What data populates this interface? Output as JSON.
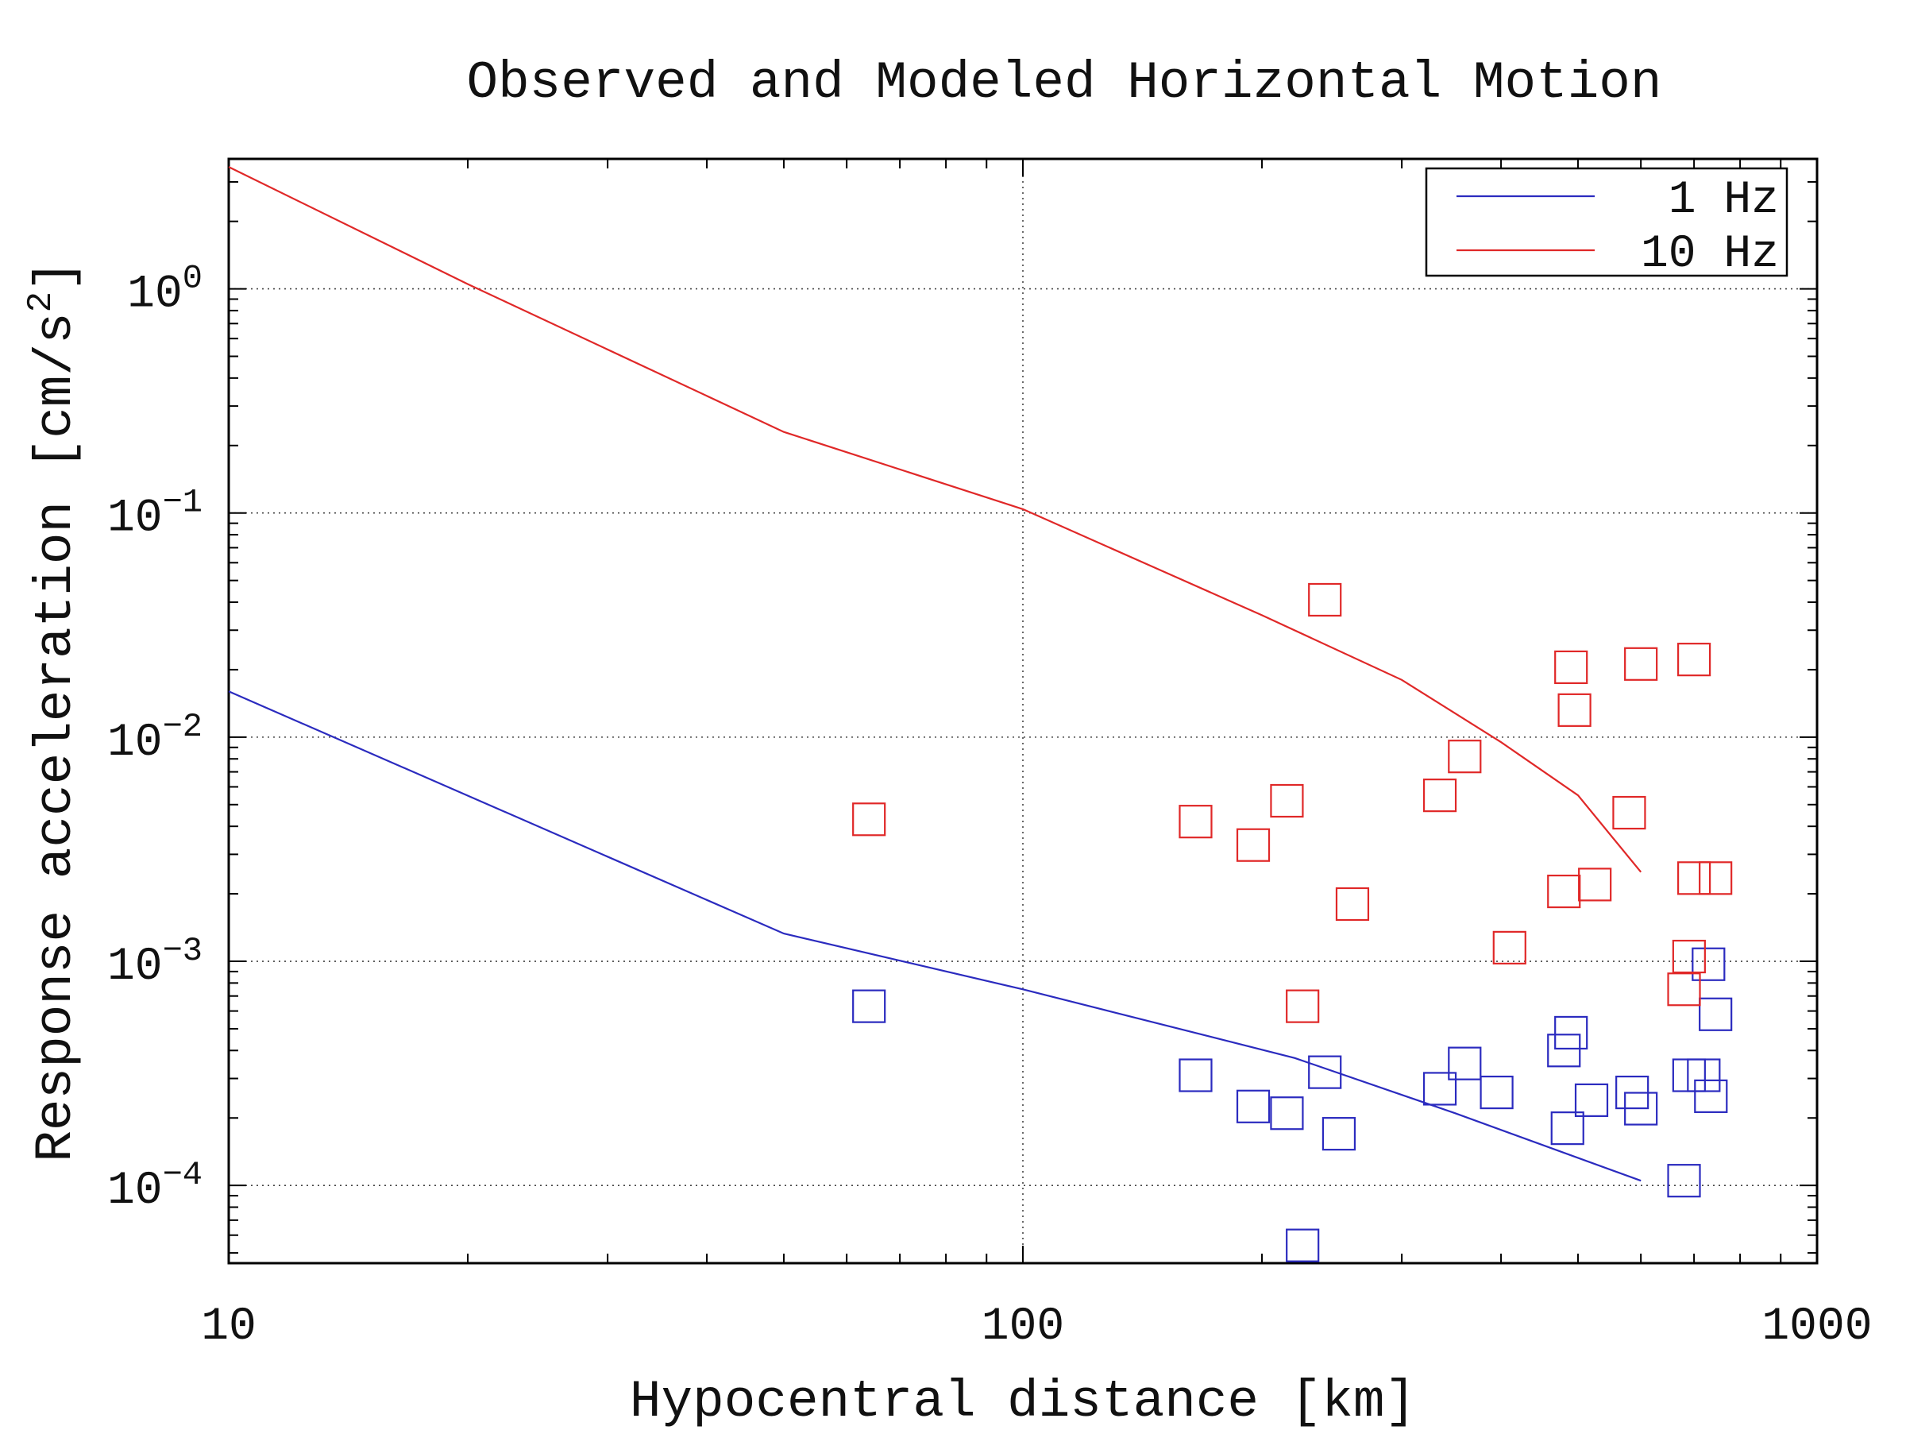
{
  "chart_data": {
    "type": "scatter",
    "title": "Observed and Modeled Horizontal Motion",
    "xlabel": "Hypocentral distance [km]",
    "ylabel": {
      "text": "Response acceleration [cm/s",
      "sup": "2",
      "close": "]"
    },
    "xscale": "log",
    "yscale": "log",
    "xlim": [
      10,
      1000
    ],
    "ylim": [
      4.5e-05,
      3.8
    ],
    "grid": true,
    "legend_position": "top-right",
    "x_ticks": [
      {
        "value": 10,
        "label": "10"
      },
      {
        "value": 100,
        "label": "100"
      },
      {
        "value": 1000,
        "label": "1000"
      }
    ],
    "y_ticks": [
      {
        "value": 1,
        "base": "10",
        "exp": "0"
      },
      {
        "value": 0.1,
        "base": "10",
        "exp": "−1"
      },
      {
        "value": 0.01,
        "base": "10",
        "exp": "−2"
      },
      {
        "value": 0.001,
        "base": "10",
        "exp": "−3"
      },
      {
        "value": 0.0001,
        "base": "10",
        "exp": "−4"
      }
    ],
    "series": [
      {
        "name": "1 Hz",
        "color": "#2b2bbf",
        "line": [
          [
            10,
            0.016
          ],
          [
            50,
            0.00133
          ],
          [
            100,
            0.00075
          ],
          [
            220,
            0.00037
          ],
          [
            350,
            0.00021
          ],
          [
            600,
            0.000105
          ]
        ],
        "points": [
          [
            64,
            0.00063
          ],
          [
            165,
            0.00031
          ],
          [
            195,
            0.000225
          ],
          [
            215,
            0.00021
          ],
          [
            225,
            5.4e-05
          ],
          [
            240,
            0.00032
          ],
          [
            250,
            0.00017
          ],
          [
            335,
            0.00027
          ],
          [
            360,
            0.00035
          ],
          [
            395,
            0.00026
          ],
          [
            480,
            0.0004
          ],
          [
            490,
            0.00048
          ],
          [
            485,
            0.00018
          ],
          [
            520,
            0.00024
          ],
          [
            585,
            0.00026
          ],
          [
            600,
            0.00022
          ],
          [
            690,
            0.00031
          ],
          [
            720,
            0.00031
          ],
          [
            735,
            0.00025
          ],
          [
            745,
            0.00058
          ],
          [
            730,
            0.00097
          ],
          [
            680,
            0.000105
          ]
        ]
      },
      {
        "name": "10 Hz",
        "color": "#e02828",
        "line": [
          [
            10,
            3.5
          ],
          [
            20,
            1.05
          ],
          [
            50,
            0.23
          ],
          [
            100,
            0.104
          ],
          [
            150,
            0.055
          ],
          [
            200,
            0.035
          ],
          [
            300,
            0.018
          ],
          [
            400,
            0.0095
          ],
          [
            500,
            0.0055
          ],
          [
            600,
            0.0025
          ]
        ],
        "points": [
          [
            64,
            0.0043
          ],
          [
            165,
            0.0042
          ],
          [
            195,
            0.0033
          ],
          [
            215,
            0.0052
          ],
          [
            225,
            0.00063
          ],
          [
            240,
            0.041
          ],
          [
            260,
            0.0018
          ],
          [
            335,
            0.0055
          ],
          [
            360,
            0.0082
          ],
          [
            410,
            0.00115
          ],
          [
            480,
            0.00205
          ],
          [
            490,
            0.0205
          ],
          [
            495,
            0.0132
          ],
          [
            525,
            0.0022
          ],
          [
            580,
            0.0046
          ],
          [
            600,
            0.0212
          ],
          [
            700,
            0.0222
          ],
          [
            700,
            0.00235
          ],
          [
            745,
            0.00235
          ],
          [
            690,
            0.00105
          ],
          [
            680,
            0.00075
          ]
        ]
      }
    ]
  }
}
